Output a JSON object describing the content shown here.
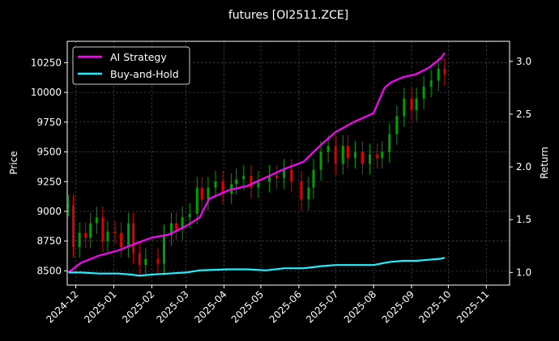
{
  "chart_data": {
    "type": "line",
    "title": "futures [OI2511.ZCE]",
    "ylabel_left": "Price",
    "ylabel_right": "Return",
    "xlabel": "",
    "x_range": [
      "2024-11-24",
      "2025-11-20"
    ],
    "ylim_left": [
      8380,
      10430
    ],
    "ylim_right": [
      0.88,
      3.19
    ],
    "x_ticks": [
      "2024-12",
      "2025-01",
      "2025-02",
      "2025-03",
      "2025-04",
      "2025-05",
      "2025-06",
      "2025-07",
      "2025-08",
      "2025-09",
      "2025-10",
      "2025-11"
    ],
    "y_ticks_left": [
      8500,
      8750,
      9000,
      9250,
      9500,
      9750,
      10000,
      10250
    ],
    "y_ticks_right": [
      "1.0",
      "1.5",
      "2.0",
      "2.5",
      "3.0"
    ],
    "grid": true,
    "legend_position": "top-left",
    "candle_colors": {
      "up": "#00a000",
      "down": "#dd0000"
    },
    "price_candles": {
      "description_x": [
        "2024-11-25",
        "2024-11-29",
        "2024-12-04",
        "2024-12-09",
        "2024-12-13",
        "2024-12-18",
        "2024-12-23",
        "2024-12-27",
        "2025-01-02",
        "2025-01-07",
        "2025-01-13",
        "2025-01-17",
        "2025-01-22",
        "2025-01-27",
        "2025-02-06",
        "2025-02-11",
        "2025-02-17",
        "2025-02-21",
        "2025-02-26",
        "2025-03-04",
        "2025-03-10",
        "2025-03-14",
        "2025-03-19",
        "2025-03-25",
        "2025-03-31",
        "2025-04-07",
        "2025-04-11",
        "2025-04-17",
        "2025-04-23",
        "2025-04-29",
        "2025-05-08",
        "2025-05-14",
        "2025-05-20",
        "2025-05-26",
        "2025-06-03",
        "2025-06-09",
        "2025-06-13",
        "2025-06-19",
        "2025-06-25",
        "2025-07-01",
        "2025-07-07",
        "2025-07-11",
        "2025-07-17",
        "2025-07-23",
        "2025-07-29",
        "2025-08-04",
        "2025-08-08",
        "2025-08-14",
        "2025-08-20",
        "2025-08-26",
        "2025-09-01",
        "2025-09-05",
        "2025-09-11",
        "2025-09-17",
        "2025-09-23",
        "2025-09-28"
      ],
      "close": [
        9050,
        8700,
        8820,
        8780,
        8900,
        8950,
        8750,
        8830,
        8820,
        8700,
        8900,
        8650,
        8550,
        8600,
        8560,
        8800,
        8900,
        8850,
        8950,
        8980,
        9200,
        9100,
        9200,
        9250,
        9150,
        9230,
        9270,
        9300,
        9200,
        9250,
        9300,
        9280,
        9350,
        9250,
        9100,
        9200,
        9350,
        9500,
        9550,
        9400,
        9550,
        9450,
        9500,
        9400,
        9480,
        9450,
        9500,
        9650,
        9800,
        9950,
        9850,
        9950,
        10050,
        10100,
        10200,
        10150
      ]
    },
    "series": [
      {
        "name": "AI Strategy",
        "axis": "right",
        "color": "#ff00ff",
        "x": [
          "2024-11-25",
          "2024-12-05",
          "2024-12-20",
          "2025-01-05",
          "2025-01-20",
          "2025-02-01",
          "2025-02-15",
          "2025-03-01",
          "2025-03-12",
          "2025-03-20",
          "2025-04-05",
          "2025-04-20",
          "2025-05-05",
          "2025-05-20",
          "2025-06-05",
          "2025-06-20",
          "2025-07-01",
          "2025-07-15",
          "2025-08-01",
          "2025-08-10",
          "2025-08-15",
          "2025-08-25",
          "2025-09-05",
          "2025-09-15",
          "2025-09-25",
          "2025-09-28"
        ],
        "values": [
          1.0,
          1.09,
          1.16,
          1.21,
          1.28,
          1.33,
          1.36,
          1.44,
          1.52,
          1.7,
          1.78,
          1.82,
          1.9,
          1.98,
          2.05,
          2.22,
          2.33,
          2.42,
          2.51,
          2.75,
          2.8,
          2.85,
          2.88,
          2.94,
          3.03,
          3.08
        ]
      },
      {
        "name": "Buy-and-Hold",
        "axis": "right",
        "color": "#22eeff",
        "x": [
          "2024-11-25",
          "2024-12-05",
          "2024-12-20",
          "2025-01-05",
          "2025-01-15",
          "2025-01-22",
          "2025-02-01",
          "2025-02-15",
          "2025-03-01",
          "2025-03-12",
          "2025-04-05",
          "2025-04-20",
          "2025-05-05",
          "2025-05-20",
          "2025-06-05",
          "2025-06-20",
          "2025-07-01",
          "2025-07-15",
          "2025-08-01",
          "2025-08-10",
          "2025-08-15",
          "2025-08-25",
          "2025-09-05",
          "2025-09-15",
          "2025-09-25",
          "2025-09-28"
        ],
        "values": [
          1.0,
          1.0,
          0.99,
          0.99,
          0.98,
          0.97,
          0.98,
          0.99,
          1.0,
          1.02,
          1.03,
          1.03,
          1.02,
          1.04,
          1.04,
          1.06,
          1.07,
          1.07,
          1.07,
          1.09,
          1.1,
          1.11,
          1.11,
          1.12,
          1.13,
          1.14
        ]
      }
    ]
  }
}
